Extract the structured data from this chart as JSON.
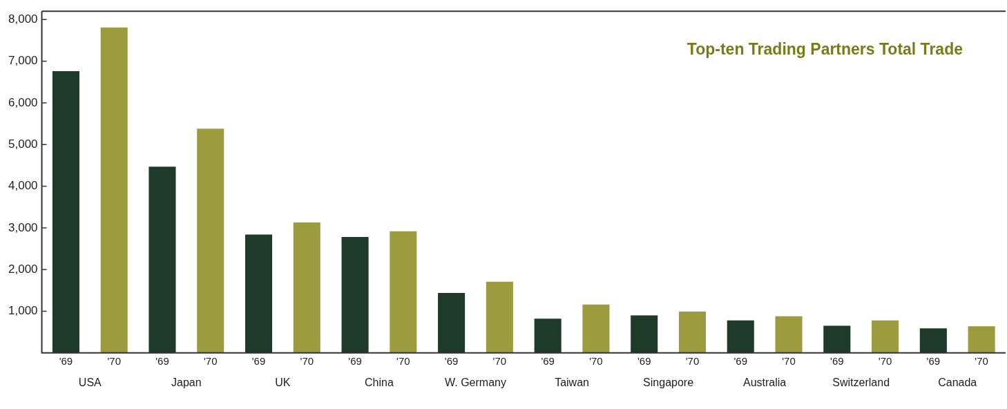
{
  "chart_data": {
    "type": "bar",
    "title": "Top-ten Trading Partners Total Trade",
    "categories": [
      "USA",
      "Japan",
      "UK",
      "China",
      "W. Germany",
      "Taiwan",
      "Singapore",
      "Australia",
      "Switzerland",
      "Canada"
    ],
    "series": [
      {
        "name": "'69",
        "color": "#1e3a2b",
        "values": [
          6760,
          4470,
          2840,
          2780,
          1440,
          820,
          900,
          780,
          650,
          590
        ]
      },
      {
        "name": "'70",
        "color": "#9c9c3e",
        "values": [
          7810,
          5380,
          3130,
          2920,
          1710,
          1160,
          990,
          880,
          780,
          640
        ]
      }
    ],
    "ylim": [
      0,
      8200
    ],
    "yticks": [
      {
        "value": 1000,
        "label": "1,000"
      },
      {
        "value": 2000,
        "label": "2,000"
      },
      {
        "value": 3000,
        "label": "3,000"
      },
      {
        "value": 4000,
        "label": "4,000"
      },
      {
        "value": 5000,
        "label": "5,000"
      },
      {
        "value": 6000,
        "label": "6,000"
      },
      {
        "value": 7000,
        "label": "7,000"
      },
      {
        "value": 8000,
        "label": "8,000"
      }
    ],
    "grid": false,
    "legend": false
  }
}
